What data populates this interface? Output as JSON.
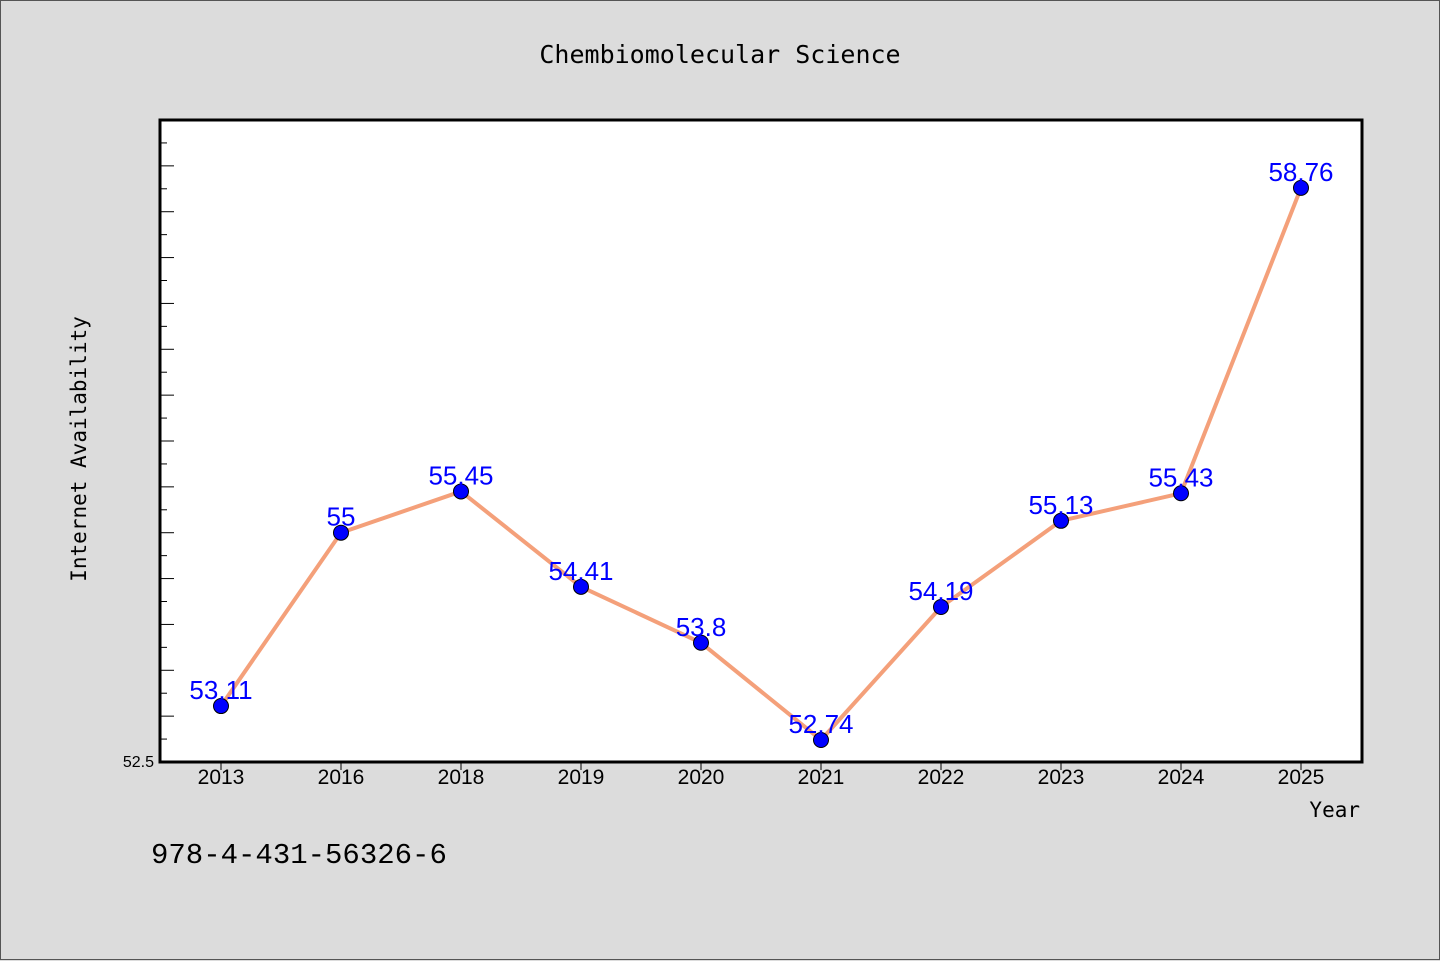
{
  "chart_data": {
    "type": "line",
    "title": "Chembiomolecular Science",
    "xlabel": "Year",
    "ylabel": "Internet Availability",
    "categories": [
      "2013",
      "2016",
      "2018",
      "2019",
      "2020",
      "2021",
      "2022",
      "2023",
      "2024",
      "2025"
    ],
    "series": [
      {
        "values": [
          53.11,
          55,
          55.45,
          54.41,
          53.8,
          52.74,
          54.19,
          55.13,
          55.43,
          58.76
        ],
        "labels": [
          "53.11",
          "55",
          "55.45",
          "54.41",
          "53.8",
          "52.74",
          "54.19",
          "55.13",
          "55.43",
          "58.76"
        ],
        "line_color": "#f4a07a",
        "marker_color": "#0000ff"
      }
    ],
    "ylim": [
      52.5,
      59.5
    ],
    "y_tick_labels": [
      "52.5"
    ],
    "grid": false,
    "legend": "none"
  },
  "footer": {
    "isbn": "978-4-431-56326-6"
  },
  "colors": {
    "background": "#dcdcdc",
    "plot_background": "#ffffff",
    "data_label": "#0000ff"
  }
}
